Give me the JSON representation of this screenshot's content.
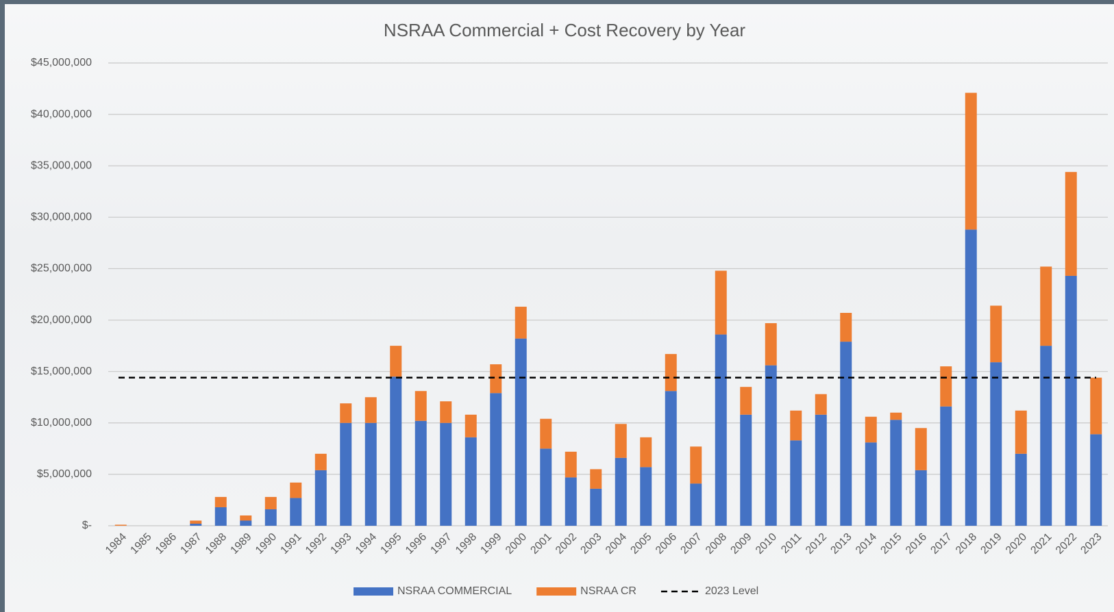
{
  "chart_data": {
    "type": "stacked_bar",
    "title": "NSRAA Commercial + Cost Recovery by Year",
    "categories": [
      "1984",
      "1985",
      "1986",
      "1987",
      "1988",
      "1989",
      "1990",
      "1991",
      "1992",
      "1993",
      "1994",
      "1995",
      "1996",
      "1997",
      "1998",
      "1999",
      "2000",
      "2001",
      "2002",
      "2003",
      "2004",
      "2005",
      "2006",
      "2007",
      "2008",
      "2009",
      "2010",
      "2011",
      "2012",
      "2013",
      "2014",
      "2015",
      "2016",
      "2017",
      "2018",
      "2019",
      "2020",
      "2021",
      "2022",
      "2023"
    ],
    "series": [
      {
        "name": "NSRAA COMMERCIAL",
        "color": "#4472c4",
        "values": [
          0,
          0,
          0,
          200000,
          1800000,
          500000,
          1600000,
          2700000,
          5400000,
          10000000,
          10000000,
          14500000,
          10200000,
          10000000,
          8600000,
          12900000,
          18200000,
          7500000,
          4700000,
          3600000,
          6600000,
          5700000,
          13100000,
          4100000,
          18600000,
          10800000,
          15600000,
          8300000,
          10800000,
          17900000,
          8100000,
          10300000,
          5400000,
          11600000,
          28800000,
          15900000,
          7000000,
          17500000,
          24300000,
          8900000
        ]
      },
      {
        "name": "NSRAA CR",
        "color": "#ed7d31",
        "values": [
          100000,
          0,
          0,
          300000,
          1000000,
          500000,
          1200000,
          1500000,
          1600000,
          1900000,
          2500000,
          3000000,
          2900000,
          2100000,
          2200000,
          2800000,
          3100000,
          2900000,
          2500000,
          1900000,
          3300000,
          2900000,
          3600000,
          3600000,
          6200000,
          2700000,
          4100000,
          2900000,
          2000000,
          2800000,
          2500000,
          700000,
          4100000,
          3900000,
          13300000,
          5500000,
          4200000,
          7700000,
          10100000,
          5500000
        ]
      }
    ],
    "reference_line": {
      "name": "2023 Level",
      "value": 14400000,
      "color": "#000000"
    },
    "ylim": [
      0,
      45000000
    ],
    "yticks": [
      {
        "value": 0,
        "label": "$-"
      },
      {
        "value": 5000000,
        "label": "$5,000,000"
      },
      {
        "value": 10000000,
        "label": "$10,000,000"
      },
      {
        "value": 15000000,
        "label": "$15,000,000"
      },
      {
        "value": 20000000,
        "label": "$20,000,000"
      },
      {
        "value": 25000000,
        "label": "$25,000,000"
      },
      {
        "value": 30000000,
        "label": "$30,000,000"
      },
      {
        "value": 35000000,
        "label": "$35,000,000"
      },
      {
        "value": 40000000,
        "label": "$40,000,000"
      },
      {
        "value": 45000000,
        "label": "$45,000,000"
      }
    ],
    "grid": true,
    "legend": "bottom"
  }
}
